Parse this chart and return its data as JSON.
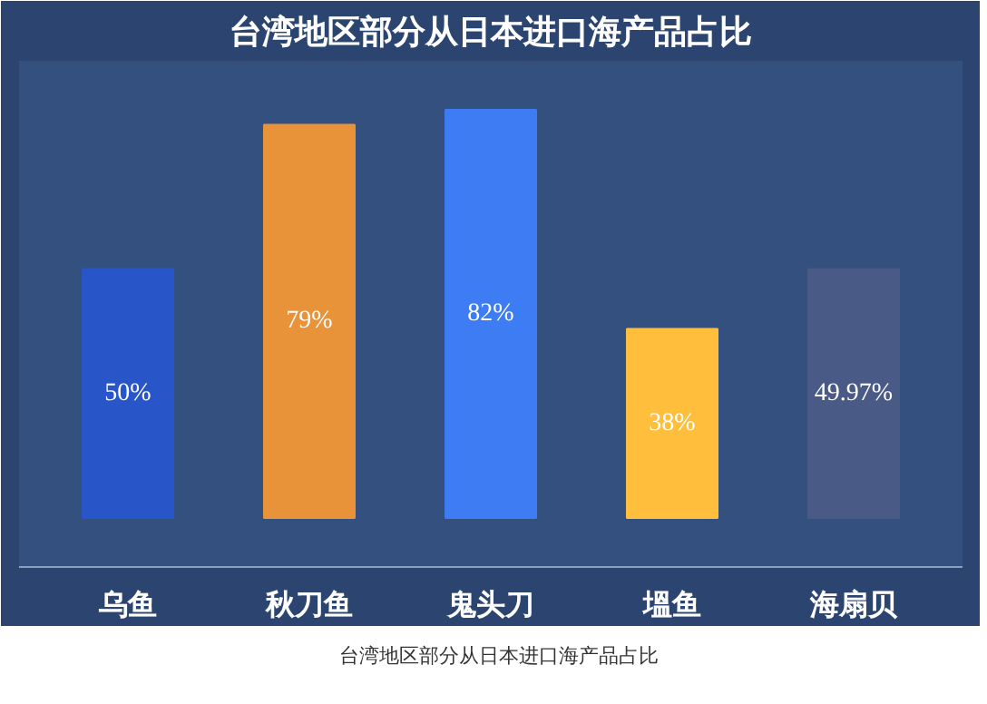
{
  "chart_data": {
    "type": "bar",
    "title": "台湾地区部分从日本进口海产品占比",
    "categories": [
      "乌鱼",
      "秋刀鱼",
      "鬼头刀",
      "塭鱼",
      "海扇贝"
    ],
    "values": [
      50,
      79,
      82,
      38,
      49.97
    ],
    "colors": [
      "#2855c8",
      "#e8923a",
      "#3d7cf2",
      "#ffbe3c",
      "#4a5a86"
    ],
    "value_labels": [
      "50%",
      "79%",
      "82%",
      "38%",
      "49.97%"
    ],
    "annotations": [
      "台湾地区部分从日本进口海产品占比"
    ],
    "grid": false
  }
}
